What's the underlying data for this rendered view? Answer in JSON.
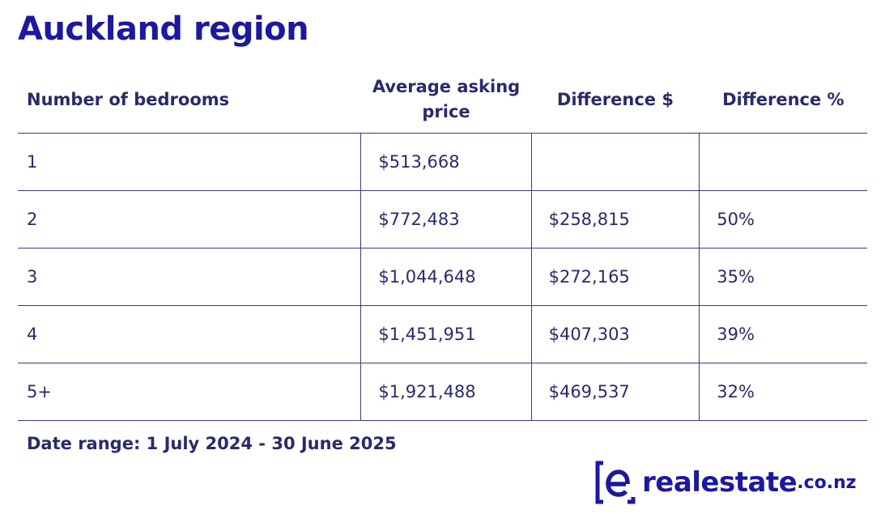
{
  "title": "Auckland region",
  "table": {
    "headers": {
      "bedrooms": "Number of bedrooms",
      "asking_line1": "Average asking",
      "asking_line2": "price",
      "diff_dollar": "Difference $",
      "diff_pct": "Difference %"
    },
    "rows": [
      {
        "bedrooms": "1",
        "price": "$513,668",
        "diff_dollar": "",
        "diff_pct": ""
      },
      {
        "bedrooms": "2",
        "price": "$772,483",
        "diff_dollar": "$258,815",
        "diff_pct": "50%"
      },
      {
        "bedrooms": "3",
        "price": "$1,044,648",
        "diff_dollar": "$272,165",
        "diff_pct": "35%"
      },
      {
        "bedrooms": "4",
        "price": "$1,451,951",
        "diff_dollar": "$407,303",
        "diff_pct": "39%"
      },
      {
        "bedrooms": "5+",
        "price": "$1,921,488",
        "diff_dollar": "$469,537",
        "diff_pct": "32%"
      }
    ]
  },
  "footnote": "Date range: 1 July 2024 - 30 June 2025",
  "logo": {
    "name": "realestate",
    "suffix": ".co.nz",
    "icon": "realestate-logo-icon",
    "color": "#1c18a0"
  }
}
